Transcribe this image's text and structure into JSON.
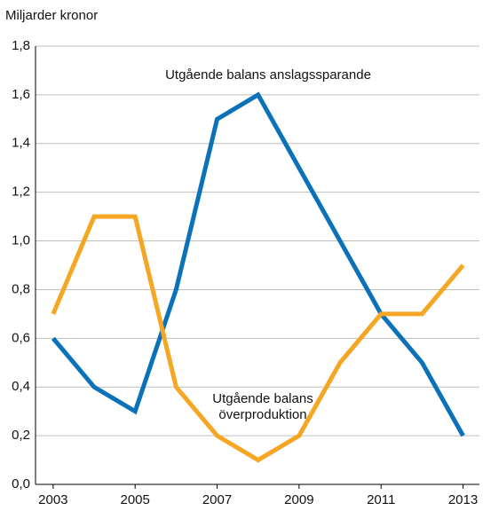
{
  "chart_data": {
    "type": "line",
    "y_label": "Miljarder kronor",
    "x": [
      2003,
      2004,
      2005,
      2006,
      2007,
      2008,
      2009,
      2010,
      2011,
      2012,
      2013
    ],
    "series": [
      {
        "color": "#0b72b9",
        "values": [
          0.6,
          0.4,
          0.3,
          0.8,
          1.5,
          1.6,
          1.3,
          1.0,
          0.7,
          0.5,
          0.2
        ]
      },
      {
        "color": "#f5a623",
        "values": [
          0.7,
          1.1,
          1.1,
          0.4,
          0.2,
          0.1,
          0.2,
          0.5,
          0.7,
          0.7,
          0.9
        ]
      }
    ],
    "annotations": [
      {
        "lines": [
          "Utgående balans anslagssparande"
        ]
      },
      {
        "lines": [
          "Utgående balans",
          "överproduktion"
        ]
      }
    ],
    "xlim": [
      2002.57,
      2013.4
    ],
    "xticks": [
      2003,
      2005,
      2007,
      2009,
      2011,
      2013
    ],
    "ylim": [
      0,
      1.8
    ],
    "yticks": [
      {
        "value": 0,
        "label": "0,0"
      },
      {
        "value": 0.2,
        "label": "0,2"
      },
      {
        "value": 0.4,
        "label": "0,4"
      },
      {
        "value": 0.6,
        "label": "0,6"
      },
      {
        "value": 0.8,
        "label": "0,8"
      },
      {
        "value": 1.0,
        "label": "1,0"
      },
      {
        "value": 1.2,
        "label": "1,2"
      },
      {
        "value": 1.4,
        "label": "1,4"
      },
      {
        "value": 1.6,
        "label": "1,6"
      },
      {
        "value": 1.8,
        "label": "1,8"
      }
    ],
    "grid": true
  }
}
